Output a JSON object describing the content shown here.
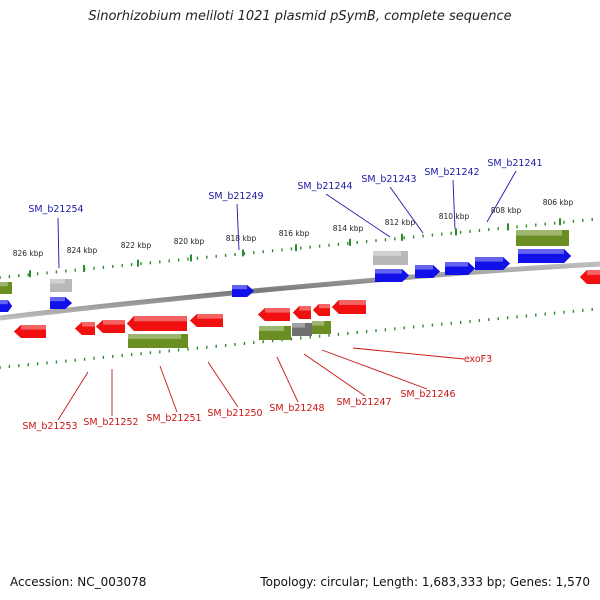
{
  "title": "Sinorhizobium meliloti 1021 plasmid pSymB, complete sequence",
  "footer": {
    "accession": "Accession: NC_003078",
    "summary": "Topology: circular; Length: 1,683,333 bp; Genes: 1,570"
  },
  "colors": {
    "forward_gene": "#1010e8",
    "reverse_gene": "#f01010",
    "rna_gene": "#6b8e23",
    "pseudo_gene": "#b8b8b8",
    "other_gene": "#707070",
    "backbone": "#808080",
    "ticks": "#2e8b2e",
    "label_top": "#1a1aa6",
    "label_bottom": "#c81414"
  },
  "ruler_labels": [
    "826 kbp",
    "824 kbp",
    "822 kbp",
    "820 kbp",
    "818 kbp",
    "816 kbp",
    "814 kbp",
    "812 kbp",
    "810 kbp",
    "808 kbp",
    "806 kbp"
  ],
  "top_gene_labels": [
    "SM_b21254",
    "SM_b21249",
    "SM_b21244",
    "SM_b21243",
    "SM_b21242",
    "SM_b21241"
  ],
  "bottom_gene_labels": [
    "SM_b21253",
    "SM_b21252",
    "SM_b21251",
    "SM_b21250",
    "SM_b21248",
    "SM_b21247",
    "SM_b21246",
    "exoF3"
  ]
}
